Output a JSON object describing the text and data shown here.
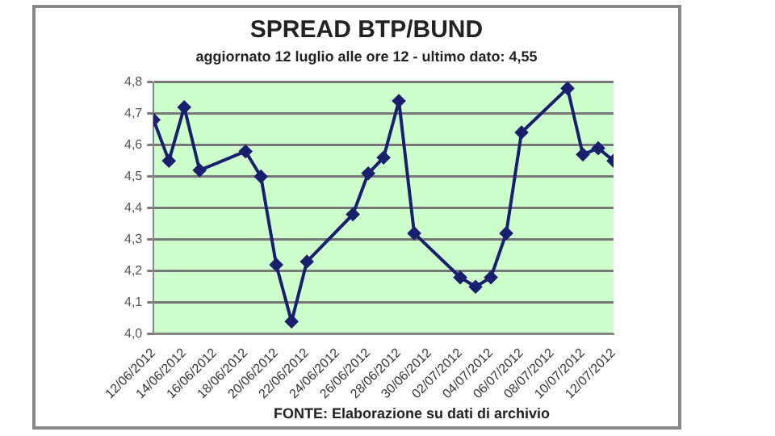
{
  "chart_data": {
    "type": "line",
    "title": "SPREAD BTP/BUND",
    "subtitle": "aggiornato 12 luglio alle ore 12 - ultimo dato: 4,55",
    "annotations": [
      "FONTE: Elaborazione su dati di archivio"
    ],
    "x": [
      "2012-06-12",
      "2012-06-13",
      "2012-06-14",
      "2012-06-15",
      "2012-06-18",
      "2012-06-19",
      "2012-06-20",
      "2012-06-21",
      "2012-06-22",
      "2012-06-25",
      "2012-06-26",
      "2012-06-27",
      "2012-06-28",
      "2012-06-29",
      "2012-07-02",
      "2012-07-03",
      "2012-07-04",
      "2012-07-05",
      "2012-07-06",
      "2012-07-09",
      "2012-07-10",
      "2012-07-11",
      "2012-07-12"
    ],
    "series": [
      {
        "color": "#1a1f6e",
        "values": [
          4.68,
          4.55,
          4.72,
          4.52,
          4.58,
          4.5,
          4.22,
          4.04,
          4.23,
          4.38,
          4.51,
          4.56,
          4.74,
          4.32,
          4.18,
          4.15,
          4.18,
          4.32,
          4.64,
          4.78,
          4.57,
          4.59,
          4.55
        ]
      }
    ],
    "xlim": [
      "2012-06-12",
      "2012-07-12"
    ],
    "xticks": [
      {
        "value": "2012-06-12",
        "label": "12/06/2012"
      },
      {
        "value": "2012-06-14",
        "label": "14/06/2012"
      },
      {
        "value": "2012-06-16",
        "label": "16/06/2012"
      },
      {
        "value": "2012-06-18",
        "label": "18/06/2012"
      },
      {
        "value": "2012-06-20",
        "label": "20/06/2012"
      },
      {
        "value": "2012-06-22",
        "label": "22/06/2012"
      },
      {
        "value": "2012-06-24",
        "label": "24/06/2012"
      },
      {
        "value": "2012-06-26",
        "label": "26/06/2012"
      },
      {
        "value": "2012-06-28",
        "label": "28/06/2012"
      },
      {
        "value": "2012-06-30",
        "label": "30/06/2012"
      },
      {
        "value": "2012-07-02",
        "label": "02/07/2012"
      },
      {
        "value": "2012-07-04",
        "label": "04/07/2012"
      },
      {
        "value": "2012-07-06",
        "label": "06/07/2012"
      },
      {
        "value": "2012-07-08",
        "label": "08/07/2012"
      },
      {
        "value": "2012-07-10",
        "label": "10/07/2012"
      },
      {
        "value": "2012-07-12",
        "label": "12/07/2012"
      }
    ],
    "ylim": [
      4.0,
      4.8
    ],
    "yticks": [
      {
        "value": 4.0,
        "label": "4,0"
      },
      {
        "value": 4.1,
        "label": "4,1"
      },
      {
        "value": 4.2,
        "label": "4,2"
      },
      {
        "value": 4.3,
        "label": "4,3"
      },
      {
        "value": 4.4,
        "label": "4,4"
      },
      {
        "value": 4.5,
        "label": "4,5"
      },
      {
        "value": 4.6,
        "label": "4,6"
      },
      {
        "value": 4.7,
        "label": "4,7"
      },
      {
        "value": 4.8,
        "label": "4,8"
      }
    ],
    "grid": "y",
    "marker": "diamond",
    "line_style": "solid"
  }
}
